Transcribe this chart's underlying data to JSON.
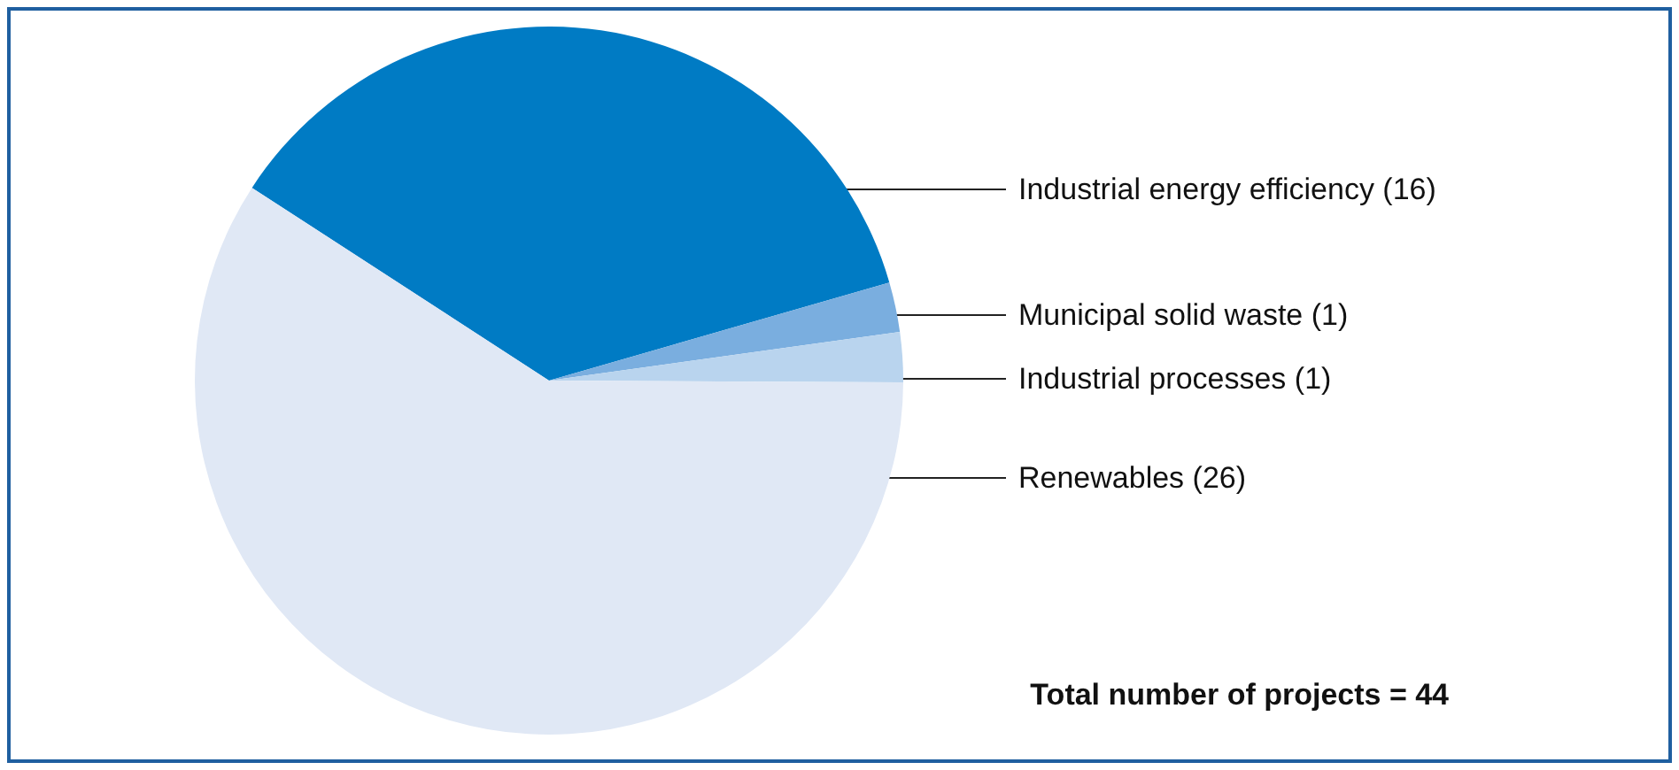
{
  "chart_data": {
    "type": "pie",
    "categories": [
      "Industrial energy efficiency",
      "Municipal solid waste",
      "Industrial processes",
      "Renewables"
    ],
    "values": [
      16,
      1,
      1,
      26
    ],
    "colors": [
      "#007bc4",
      "#7aaedf",
      "#b9d4ee",
      "#e0e8f5"
    ],
    "value_labels": [
      "(16)",
      "(1)",
      "(1)",
      "(26)"
    ],
    "legend": false,
    "annotations": [
      "Total number of projects = 44"
    ]
  }
}
